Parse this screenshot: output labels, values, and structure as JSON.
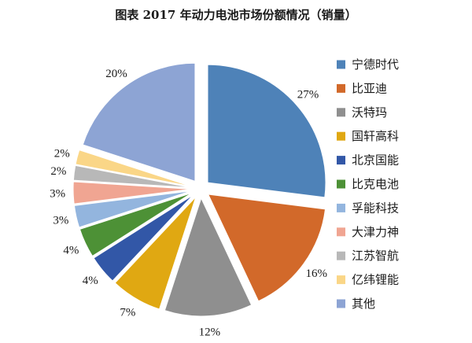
{
  "chart_data": {
    "type": "pie",
    "title": "图表 2017 年动力电池市场份额情况（销量）",
    "labels": [
      "宁德时代",
      "比亚迪",
      "沃特玛",
      "国轩高科",
      "北京国能",
      "比克电池",
      "孚能科技",
      "大津力神",
      "江苏智航",
      "亿纬锂能",
      "其他"
    ],
    "values": [
      27,
      16,
      12,
      7,
      4,
      4,
      3,
      3,
      2,
      2,
      20
    ],
    "value_labels": [
      "27%",
      "16%",
      "12%",
      "7%",
      "4%",
      "4%",
      "3%",
      "3%",
      "2%",
      "2%",
      "20%"
    ],
    "colors": [
      "#4e82b8",
      "#d2692a",
      "#8f8f8f",
      "#e0a812",
      "#3257a7",
      "#4d9136",
      "#93b5de",
      "#f0a592",
      "#b8b8b8",
      "#fad687",
      "#8da4d4"
    ],
    "legend_position": "right",
    "exploded": true
  }
}
